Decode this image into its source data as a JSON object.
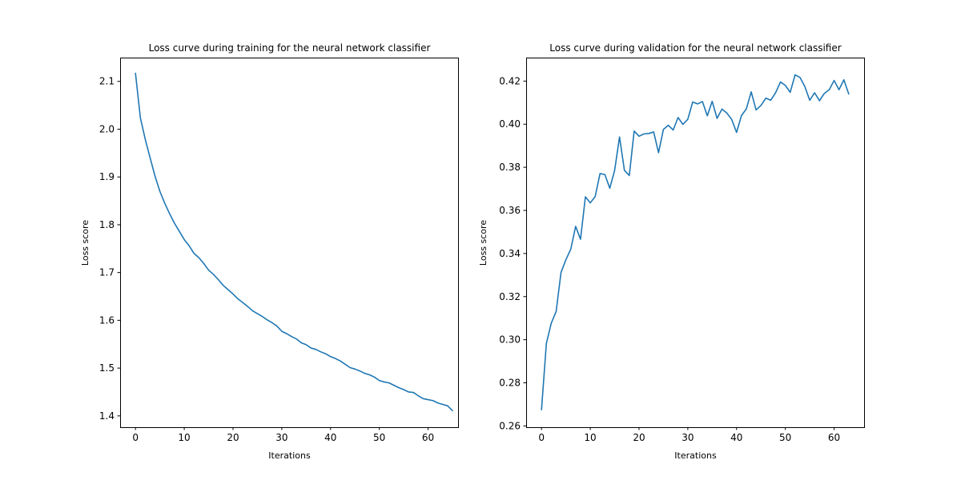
{
  "chart_data": [
    {
      "type": "line",
      "title": "Loss curve during training for the neural network classifier",
      "xlabel": "Iterations",
      "ylabel": "Loss score",
      "xlim": [
        -3.15,
        66.15
      ],
      "ylim": [
        1.3763,
        2.1498
      ],
      "xticks": [
        0,
        10,
        20,
        30,
        40,
        50,
        60
      ],
      "yticks": [
        1.4,
        1.5,
        1.6,
        1.7,
        1.8,
        1.9,
        2.0,
        2.1
      ],
      "ytick_labels": [
        "1.4",
        "1.5",
        "1.6",
        "1.7",
        "1.8",
        "1.9",
        "2.0",
        "2.1"
      ],
      "grid": false,
      "color": "#1f77b4",
      "series": [
        {
          "values": [
            2.117,
            2.024,
            1.979,
            1.94,
            1.902,
            1.87,
            1.845,
            1.823,
            1.803,
            1.786,
            1.769,
            1.756,
            1.74,
            1.731,
            1.719,
            1.705,
            1.696,
            1.685,
            1.673,
            1.664,
            1.655,
            1.645,
            1.637,
            1.629,
            1.62,
            1.614,
            1.608,
            1.601,
            1.595,
            1.588,
            1.577,
            1.572,
            1.566,
            1.561,
            1.553,
            1.549,
            1.542,
            1.539,
            1.534,
            1.53,
            1.524,
            1.52,
            1.515,
            1.508,
            1.501,
            1.498,
            1.494,
            1.489,
            1.486,
            1.481,
            1.474,
            1.471,
            1.469,
            1.464,
            1.459,
            1.455,
            1.45,
            1.449,
            1.442,
            1.436,
            1.434,
            1.432,
            1.427,
            1.424,
            1.421,
            1.411
          ]
        }
      ]
    },
    {
      "type": "line",
      "title": "Loss curve during validation for the neural network classifier",
      "xlabel": "Iterations",
      "ylabel": "Loss score",
      "xlim": [
        -3.15,
        66.15
      ],
      "ylim": [
        0.2594,
        0.4309
      ],
      "xticks": [
        0,
        10,
        20,
        30,
        40,
        50,
        60
      ],
      "yticks": [
        0.26,
        0.28,
        0.3,
        0.32,
        0.34,
        0.36,
        0.38,
        0.4,
        0.42
      ],
      "ytick_labels": [
        "0.26",
        "0.28",
        "0.30",
        "0.32",
        "0.34",
        "0.36",
        "0.38",
        "0.40",
        "0.42"
      ],
      "grid": false,
      "color": "#1f77b4",
      "series": [
        {
          "values": [
            0.2675,
            0.2983,
            0.3077,
            0.3131,
            0.3312,
            0.3371,
            0.342,
            0.3526,
            0.3466,
            0.3663,
            0.3635,
            0.3664,
            0.3771,
            0.3766,
            0.3703,
            0.3786,
            0.3941,
            0.3786,
            0.3762,
            0.3968,
            0.3944,
            0.3955,
            0.3957,
            0.3964,
            0.3868,
            0.3976,
            0.3995,
            0.3973,
            0.4031,
            0.3999,
            0.4023,
            0.4103,
            0.4094,
            0.4105,
            0.4039,
            0.4106,
            0.4027,
            0.407,
            0.4052,
            0.4022,
            0.3962,
            0.404,
            0.4071,
            0.415,
            0.4066,
            0.4087,
            0.4121,
            0.4111,
            0.4146,
            0.4196,
            0.418,
            0.4148,
            0.4229,
            0.4217,
            0.4175,
            0.4111,
            0.4146,
            0.4109,
            0.4143,
            0.416,
            0.4203,
            0.416,
            0.4206,
            0.414
          ]
        }
      ]
    }
  ]
}
